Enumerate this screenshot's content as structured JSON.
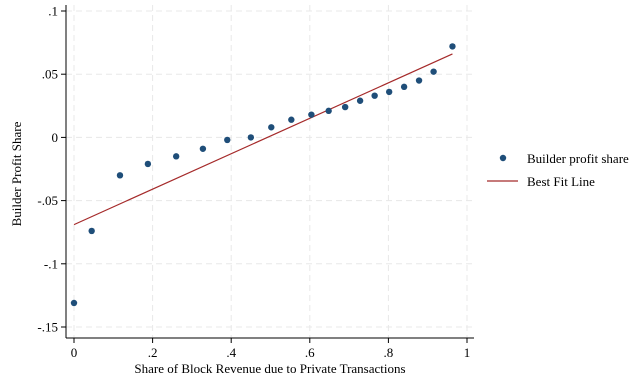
{
  "chart_data": {
    "type": "scatter",
    "title": "",
    "xlabel": "Share of Block Revenue due to Private Transactions",
    "ylabel": "Builder Profit Share",
    "xlim": [
      0,
      1
    ],
    "ylim": [
      -0.15,
      0.1
    ],
    "xticks": [
      {
        "value": 0,
        "label": "0"
      },
      {
        "value": 0.2,
        "label": ".2"
      },
      {
        "value": 0.4,
        "label": ".4"
      },
      {
        "value": 0.6,
        "label": ".6"
      },
      {
        "value": 0.8,
        "label": ".8"
      },
      {
        "value": 1,
        "label": "1"
      }
    ],
    "yticks": [
      {
        "value": 0.1,
        "label": ".1"
      },
      {
        "value": 0.05,
        "label": ".05"
      },
      {
        "value": 0,
        "label": "0"
      },
      {
        "value": -0.05,
        "label": "-.05"
      },
      {
        "value": -0.1,
        "label": "-.1"
      },
      {
        "value": -0.15,
        "label": "-.15"
      }
    ],
    "grid": true,
    "legend_position": "right",
    "colors": {
      "points": "#1f4e79",
      "fit_line": "#a52a2a",
      "grid": "#e8e8e8",
      "axis": "#000000"
    },
    "series": [
      {
        "name": "Builder profit share",
        "kind": "scatter",
        "x": [
          0.0,
          0.045,
          0.117,
          0.188,
          0.26,
          0.328,
          0.39,
          0.45,
          0.502,
          0.553,
          0.604,
          0.648,
          0.69,
          0.728,
          0.765,
          0.802,
          0.84,
          0.878,
          0.915,
          0.963
        ],
        "y": [
          -0.131,
          -0.074,
          -0.03,
          -0.021,
          -0.015,
          -0.009,
          -0.002,
          0.0,
          0.008,
          0.014,
          0.018,
          0.021,
          0.024,
          0.029,
          0.033,
          0.036,
          0.04,
          0.045,
          0.052,
          0.072
        ]
      },
      {
        "name": "Best Fit Line",
        "kind": "line",
        "x": [
          0.0,
          0.963
        ],
        "y": [
          -0.069,
          0.066
        ]
      }
    ]
  }
}
